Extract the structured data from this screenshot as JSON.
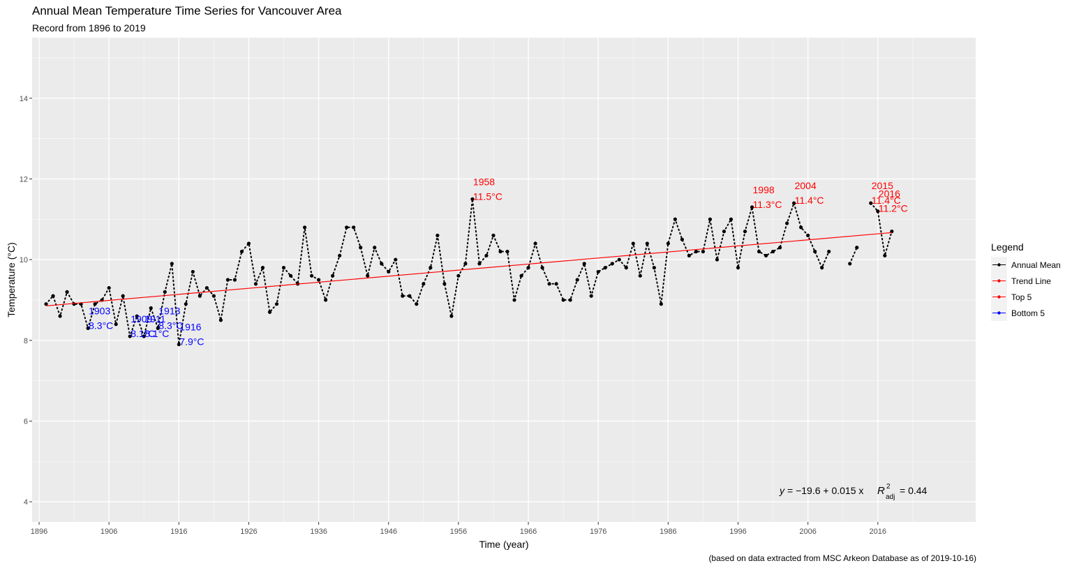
{
  "chart_data": {
    "type": "line",
    "title": "Annual Mean Temperature Time Series for Vancouver Area",
    "subtitle": "Record from 1896 to 2019",
    "xlabel": "Time (year)",
    "ylabel": "Temperature (°C)",
    "caption": "(based on data extracted from MSC Arkeon Database as of 2019-10-16)",
    "xlim": [
      1895,
      2030
    ],
    "ylim": [
      3.5,
      15.5
    ],
    "x_ticks": [
      1896,
      1906,
      1916,
      1926,
      1936,
      1946,
      1956,
      1966,
      1976,
      1986,
      1996,
      2006,
      2016
    ],
    "y_ticks": [
      4,
      6,
      8,
      10,
      12,
      14
    ],
    "grid": true,
    "legend_position": "right",
    "legend_title": "Legend",
    "legend": [
      {
        "label": "Annual Mean",
        "color": "#000000"
      },
      {
        "label": "Trend Line",
        "color": "#ff0000"
      },
      {
        "label": "Top 5",
        "color": "#ff0000"
      },
      {
        "label": "Bottom 5",
        "color": "#0000ff"
      }
    ],
    "series": [
      {
        "name": "Annual Mean",
        "color": "#000000",
        "points": [
          [
            1897,
            8.9
          ],
          [
            1898,
            9.1
          ],
          [
            1899,
            8.6
          ],
          [
            1900,
            9.2
          ],
          [
            1901,
            8.9
          ],
          [
            1902,
            8.9
          ],
          [
            1903,
            8.3
          ],
          [
            1904,
            8.9
          ],
          [
            1905,
            9.0
          ],
          [
            1906,
            9.3
          ],
          [
            1907,
            8.4
          ],
          [
            1908,
            9.1
          ],
          [
            1909,
            8.1
          ],
          [
            1910,
            8.6
          ],
          [
            1911,
            8.1
          ],
          [
            1912,
            8.8
          ],
          [
            1913,
            8.3
          ],
          [
            1914,
            9.2
          ],
          [
            1915,
            9.9
          ],
          [
            1916,
            7.9
          ],
          [
            1917,
            8.9
          ],
          [
            1918,
            9.7
          ],
          [
            1919,
            9.1
          ],
          [
            1920,
            9.3
          ],
          [
            1921,
            9.1
          ],
          [
            1922,
            8.5
          ],
          [
            1923,
            9.5
          ],
          [
            1924,
            9.5
          ],
          [
            1925,
            10.2
          ],
          [
            1926,
            10.4
          ],
          [
            1927,
            9.4
          ],
          [
            1928,
            9.8
          ],
          [
            1929,
            8.7
          ],
          [
            1930,
            8.9
          ],
          [
            1931,
            9.8
          ],
          [
            1932,
            9.6
          ],
          [
            1933,
            9.4
          ],
          [
            1934,
            10.8
          ],
          [
            1935,
            9.6
          ],
          [
            1936,
            9.5
          ],
          [
            1937,
            9.0
          ],
          [
            1938,
            9.6
          ],
          [
            1939,
            10.1
          ],
          [
            1940,
            10.8
          ],
          [
            1941,
            10.8
          ],
          [
            1942,
            10.3
          ],
          [
            1943,
            9.6
          ],
          [
            1944,
            10.3
          ],
          [
            1945,
            9.9
          ],
          [
            1946,
            9.7
          ],
          [
            1947,
            10.0
          ],
          [
            1948,
            9.1
          ],
          [
            1949,
            9.1
          ],
          [
            1950,
            8.9
          ],
          [
            1951,
            9.4
          ],
          [
            1952,
            9.8
          ],
          [
            1953,
            10.6
          ],
          [
            1954,
            9.4
          ],
          [
            1955,
            8.6
          ],
          [
            1956,
            9.6
          ],
          [
            1957,
            9.9
          ],
          [
            1958,
            11.5
          ],
          [
            1959,
            9.9
          ],
          [
            1960,
            10.1
          ],
          [
            1961,
            10.6
          ],
          [
            1962,
            10.2
          ],
          [
            1963,
            10.2
          ],
          [
            1964,
            9.0
          ],
          [
            1965,
            9.6
          ],
          [
            1966,
            9.8
          ],
          [
            1967,
            10.4
          ],
          [
            1968,
            9.8
          ],
          [
            1969,
            9.4
          ],
          [
            1970,
            9.4
          ],
          [
            1971,
            9.0
          ],
          [
            1972,
            9.0
          ],
          [
            1973,
            9.5
          ],
          [
            1974,
            9.9
          ],
          [
            1975,
            9.1
          ],
          [
            1976,
            9.7
          ],
          [
            1977,
            9.8
          ],
          [
            1978,
            9.9
          ],
          [
            1979,
            10.0
          ],
          [
            1980,
            9.8
          ],
          [
            1981,
            10.4
          ],
          [
            1982,
            9.6
          ],
          [
            1983,
            10.4
          ],
          [
            1984,
            9.8
          ],
          [
            1985,
            8.9
          ],
          [
            1986,
            10.4
          ],
          [
            1987,
            11.0
          ],
          [
            1988,
            10.5
          ],
          [
            1989,
            10.1
          ],
          [
            1990,
            10.2
          ],
          [
            1991,
            10.2
          ],
          [
            1992,
            11.0
          ],
          [
            1993,
            10.0
          ],
          [
            1994,
            10.7
          ],
          [
            1995,
            11.0
          ],
          [
            1996,
            9.8
          ],
          [
            1997,
            10.7
          ],
          [
            1998,
            11.3
          ],
          [
            1999,
            10.2
          ],
          [
            2000,
            10.1
          ],
          [
            2001,
            10.2
          ],
          [
            2002,
            10.3
          ],
          [
            2003,
            10.9
          ],
          [
            2004,
            11.4
          ],
          [
            2005,
            10.8
          ],
          [
            2006,
            10.6
          ],
          [
            2007,
            10.2
          ],
          [
            2008,
            9.8
          ],
          [
            2009,
            10.2
          ],
          [
            2012,
            9.9
          ],
          [
            2013,
            10.3
          ],
          [
            2015,
            11.4
          ],
          [
            2016,
            11.2
          ],
          [
            2017,
            10.1
          ],
          [
            2018,
            10.7
          ]
        ]
      },
      {
        "name": "Trend Line",
        "color": "#ff0000",
        "points": [
          [
            1897,
            8.855
          ],
          [
            2018,
            10.67
          ]
        ]
      },
      {
        "name": "Top 5",
        "color": "#ff0000",
        "points": [
          [
            1958,
            11.5
          ],
          [
            1998,
            11.3
          ],
          [
            2004,
            11.4
          ],
          [
            2015,
            11.4
          ],
          [
            2016,
            11.2
          ]
        ]
      },
      {
        "name": "Bottom 5",
        "color": "#0000ff",
        "points": [
          [
            1903,
            8.3
          ],
          [
            1909,
            8.1
          ],
          [
            1911,
            8.1
          ],
          [
            1913,
            8.3
          ],
          [
            1916,
            7.9
          ]
        ]
      }
    ],
    "annotations": {
      "top": [
        {
          "year": "1958",
          "value": "11.5°C",
          "x": 1958,
          "y": 11.5
        },
        {
          "year": "1998",
          "value": "11.3°C",
          "x": 1998,
          "y": 11.3
        },
        {
          "year": "2004",
          "value": "11.4°C",
          "x": 2004,
          "y": 11.4
        },
        {
          "year": "2015",
          "value": "11.4°C",
          "x": 2015,
          "y": 11.4
        },
        {
          "year": "2016",
          "value": "11.2°C",
          "x": 2016,
          "y": 11.2
        }
      ],
      "bottom": [
        {
          "year": "1903",
          "value": "8.3°C",
          "x": 1903,
          "y": 8.3
        },
        {
          "year": "1909",
          "value": "8.1°C",
          "x": 1909,
          "y": 8.1
        },
        {
          "year": "1911",
          "value": "8.1°C",
          "x": 1911,
          "y": 8.1
        },
        {
          "year": "1913",
          "value": "8.3°C",
          "x": 1913,
          "y": 8.3
        },
        {
          "year": "1916",
          "value": "7.9°C",
          "x": 1916,
          "y": 7.9
        }
      ],
      "equation": {
        "y_part": "y",
        "rhs": "= −19.6 + 0.015 x",
        "r_letter": "R",
        "r_sup": "2",
        "r_sub": "adj",
        "r_value": "= 0.44"
      }
    }
  }
}
